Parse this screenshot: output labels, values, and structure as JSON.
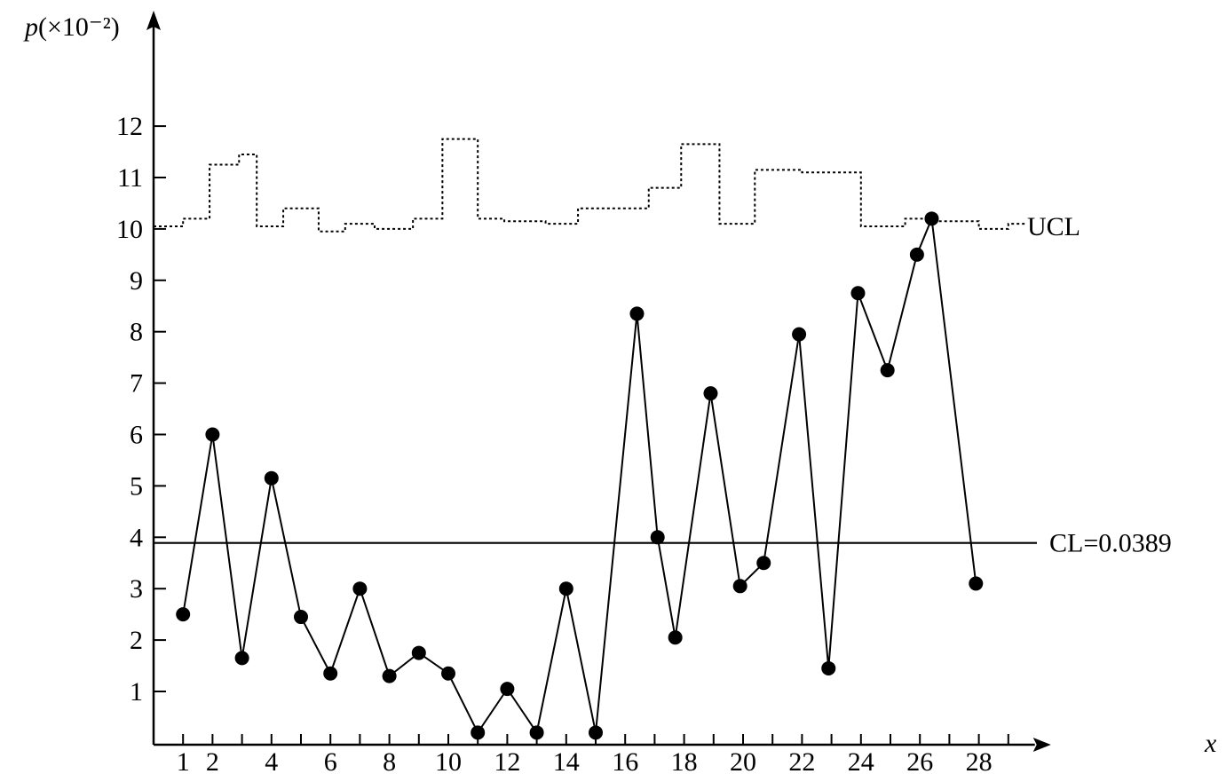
{
  "chart_data": {
    "type": "line",
    "ylabel": "p(×10⁻²)",
    "xlabel": "x",
    "y_ticks": [
      1,
      2,
      3,
      4,
      5,
      6,
      7,
      8,
      9,
      10,
      11,
      12
    ],
    "x_ticks": [
      1,
      2,
      4,
      6,
      8,
      10,
      12,
      14,
      16,
      18,
      20,
      22,
      24,
      26,
      28
    ],
    "x_range": [
      0,
      29.6
    ],
    "y_range": [
      0.25,
      14.2
    ],
    "grid": false,
    "cl_label": "CL=0.0389",
    "cl_value": 3.89,
    "ucl_label": "UCL",
    "series": [
      {
        "x": [
          1,
          2,
          3,
          4,
          5,
          6,
          7,
          8,
          9,
          10,
          11,
          12,
          13,
          14,
          15,
          16.4,
          17.1,
          17.7,
          18.9,
          19.9,
          20.7,
          21.9,
          22.9,
          23.9,
          24.9,
          25.9,
          26.4,
          27.9
        ],
        "values": [
          2.5,
          6.0,
          1.65,
          5.15,
          2.45,
          1.35,
          3.0,
          1.3,
          1.75,
          1.35,
          0.2,
          1.05,
          0.2,
          3.0,
          0.2,
          8.35,
          4.0,
          2.05,
          6.8,
          3.05,
          3.5,
          7.95,
          1.45,
          8.75,
          7.25,
          9.5,
          10.2,
          3.1
        ]
      }
    ],
    "ucl_steps": {
      "x": [
        0,
        1,
        1.9,
        2.9,
        3.5,
        4.4,
        5.6,
        6.5,
        7.5,
        8.8,
        9.8,
        11.0,
        11.9,
        13.3,
        14.4,
        16.8,
        17.9,
        19.2,
        20.4,
        22.0,
        24.0,
        25.5,
        26.6,
        28.0,
        29.0
      ],
      "values": [
        10.05,
        10.2,
        11.25,
        11.45,
        10.05,
        10.4,
        9.95,
        10.1,
        10.0,
        10.2,
        11.75,
        10.2,
        10.15,
        10.1,
        10.4,
        10.8,
        11.65,
        10.1,
        11.15,
        11.1,
        10.05,
        10.2,
        10.15,
        10.0,
        10.1
      ],
      "x_end": 29.6
    }
  }
}
